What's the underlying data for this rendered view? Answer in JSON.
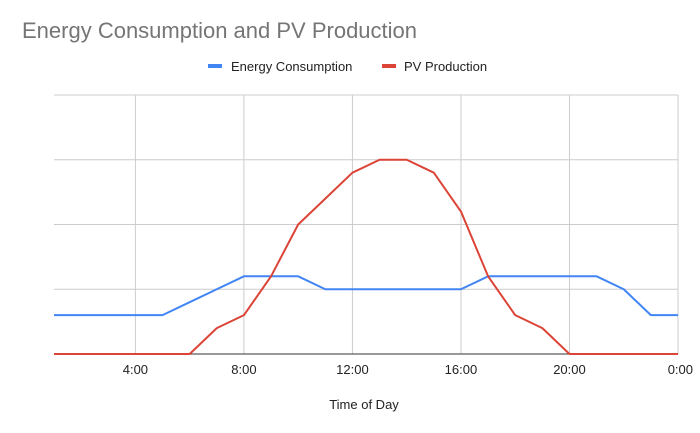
{
  "chart_data": {
    "type": "line",
    "title": "Energy Consumption and PV Production",
    "xlabel": "Time of Day",
    "ylabel": "",
    "x": [
      1,
      2,
      3,
      4,
      5,
      6,
      7,
      8,
      9,
      10,
      11,
      12,
      13,
      14,
      15,
      16,
      17,
      18,
      19,
      20,
      21,
      22,
      23,
      24
    ],
    "x_ticks": [
      {
        "value": 4,
        "label": "4:00"
      },
      {
        "value": 8,
        "label": "8:00"
      },
      {
        "value": 12,
        "label": "12:00"
      },
      {
        "value": 16,
        "label": "16:00"
      },
      {
        "value": 20,
        "label": "20:00"
      },
      {
        "value": 24,
        "label": "0:00"
      }
    ],
    "xlim": [
      1,
      24
    ],
    "ylim": [
      0,
      4
    ],
    "y_gridlines": [
      0,
      1,
      2,
      3,
      4
    ],
    "grid": true,
    "legend_position": "top",
    "series": [
      {
        "name": "Energy Consumption",
        "color": "#4285f4",
        "values": [
          0.6,
          0.6,
          0.6,
          0.6,
          0.6,
          0.8,
          1.0,
          1.2,
          1.2,
          1.2,
          1.0,
          1.0,
          1.0,
          1.0,
          1.0,
          1.0,
          1.2,
          1.2,
          1.2,
          1.2,
          1.2,
          1.0,
          0.6,
          0.6
        ]
      },
      {
        "name": "PV Production",
        "color": "#db4437",
        "values": [
          0,
          0,
          0,
          0,
          0,
          0,
          0.4,
          0.6,
          1.2,
          2.0,
          2.4,
          2.8,
          3.0,
          3.0,
          2.8,
          2.2,
          1.2,
          0.6,
          0.4,
          0,
          0,
          0,
          0,
          0
        ]
      }
    ]
  }
}
